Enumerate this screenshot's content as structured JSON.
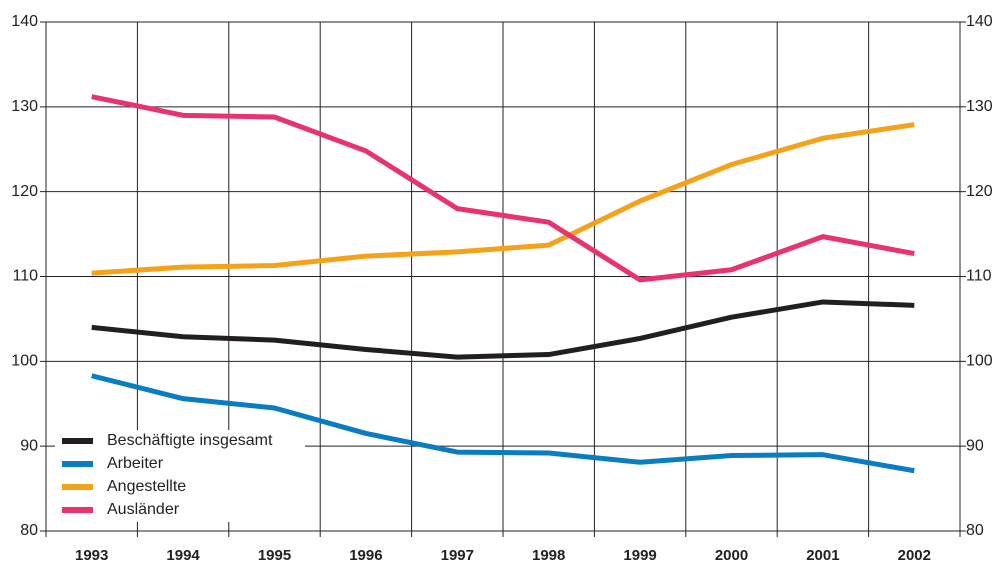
{
  "chart_data": {
    "type": "line",
    "categories": [
      "1993",
      "1994",
      "1995",
      "1996",
      "1997",
      "1998",
      "1999",
      "2000",
      "2001",
      "2002"
    ],
    "series": [
      {
        "name": "Beschäftigte insgesamt",
        "color": "#231f20",
        "values": [
          104.0,
          102.9,
          102.5,
          101.4,
          100.5,
          100.8,
          102.7,
          105.2,
          107.0,
          106.6
        ]
      },
      {
        "name": "Arbeiter",
        "color": "#0a7cc2",
        "values": [
          98.3,
          95.6,
          94.5,
          91.5,
          89.3,
          89.2,
          88.1,
          88.9,
          89.0,
          87.1
        ]
      },
      {
        "name": "Angestellte",
        "color": "#f5a21b",
        "values": [
          110.4,
          111.1,
          111.3,
          112.4,
          112.9,
          113.7,
          118.9,
          123.2,
          126.3,
          127.9
        ]
      },
      {
        "name": "Ausländer",
        "color": "#e8336f",
        "values": [
          131.2,
          129.0,
          128.8,
          124.8,
          118.0,
          116.4,
          109.6,
          110.8,
          114.7,
          112.7
        ]
      }
    ],
    "ylim": [
      80,
      140
    ],
    "yticks": [
      80,
      90,
      100,
      110,
      120,
      130,
      140
    ],
    "y2lim": [
      80,
      140
    ],
    "y2ticks": [
      80,
      90,
      100,
      110,
      120,
      130,
      140
    ],
    "grid": true,
    "legend": "lower left"
  }
}
